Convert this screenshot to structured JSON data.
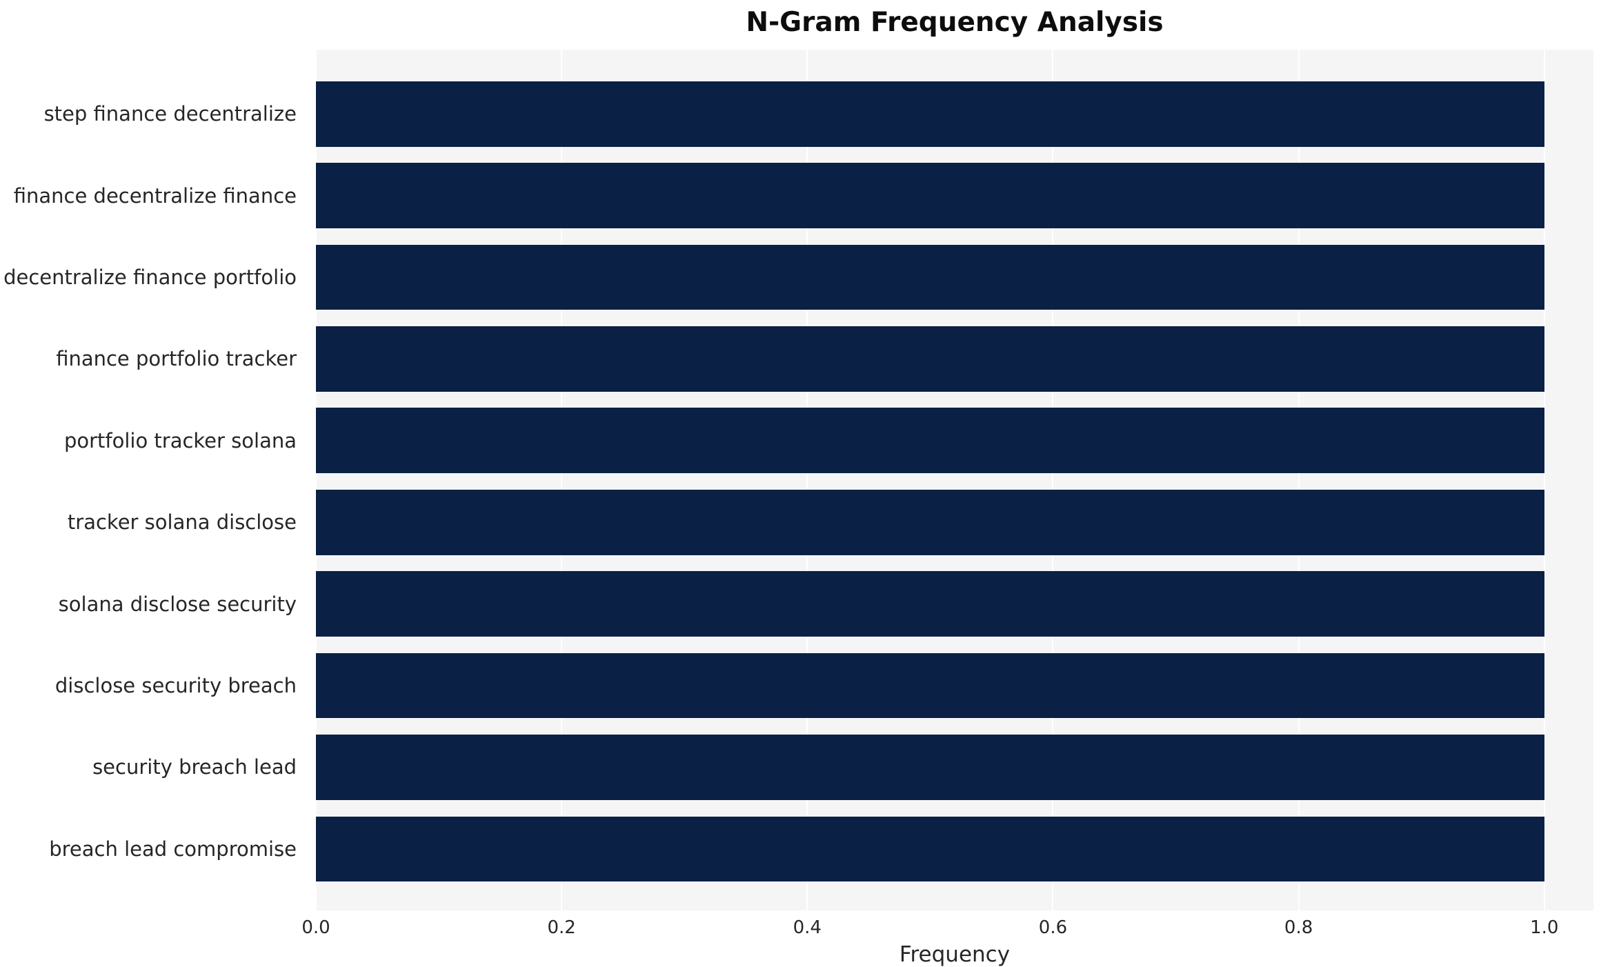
{
  "chart_data": {
    "type": "bar",
    "orientation": "horizontal",
    "title": "N-Gram Frequency Analysis",
    "xlabel": "Frequency",
    "ylabel": "",
    "categories": [
      "step finance decentralize",
      "finance decentralize finance",
      "decentralize finance portfolio",
      "finance portfolio tracker",
      "portfolio tracker solana",
      "tracker solana disclose",
      "solana disclose security",
      "disclose security breach",
      "security breach lead",
      "breach lead compromise"
    ],
    "values": [
      1.0,
      1.0,
      1.0,
      1.0,
      1.0,
      1.0,
      1.0,
      1.0,
      1.0,
      1.0
    ],
    "xticks": [
      0.0,
      0.2,
      0.4,
      0.6,
      0.8,
      1.0
    ],
    "xtick_labels": [
      "0.0",
      "0.2",
      "0.4",
      "0.6",
      "0.8",
      "1.0"
    ],
    "xlim": [
      0,
      1.04
    ],
    "grid": true,
    "legend": "none",
    "colors": {
      "bar": "#0a2044",
      "plot_background": "#f5f5f6",
      "gridline": "#ffffff",
      "text": "#262626",
      "title": "#0d0d0d"
    }
  }
}
